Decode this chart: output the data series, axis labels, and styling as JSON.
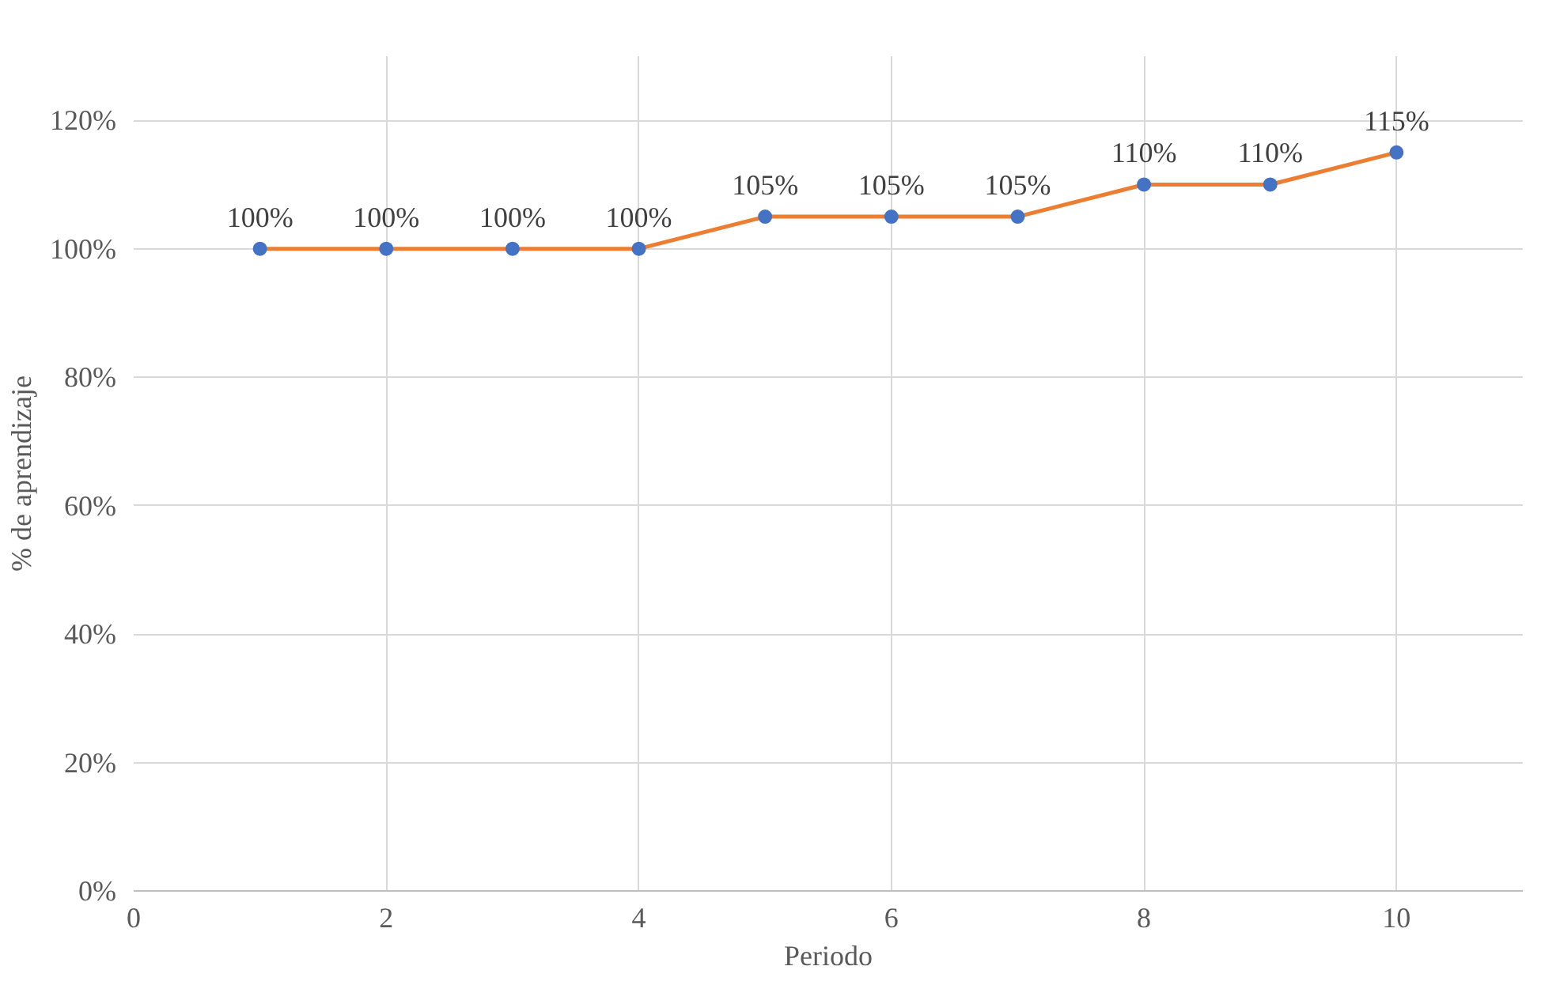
{
  "chart_data": {
    "type": "line",
    "xlabel": "Periodo",
    "ylabel": "% de aprendizaje",
    "x": [
      1,
      2,
      3,
      4,
      5,
      6,
      7,
      8,
      9,
      10
    ],
    "series": [
      {
        "color": "#ed7d31",
        "colors": [
          "#4472c4",
          "#4472c4",
          "#4472c4",
          "#4472c4",
          "#4472c4",
          "#4472c4",
          "#4472c4",
          "#4472c4",
          "#4472c4",
          "#4472c4"
        ],
        "values": [
          100,
          100,
          100,
          100,
          105,
          105,
          105,
          110,
          110,
          115
        ],
        "value_labels": [
          "100%",
          "100%",
          "100%",
          "100%",
          "105%",
          "105%",
          "105%",
          "110%",
          "110%",
          "115%"
        ]
      }
    ],
    "xlim": [
      0,
      11
    ],
    "xticks": [
      0,
      2,
      4,
      6,
      8,
      10
    ],
    "ylim": [
      0,
      130
    ],
    "yticks": [
      {
        "value": 0,
        "label": "0%"
      },
      {
        "value": 20,
        "label": "20%"
      },
      {
        "value": 40,
        "label": "40%"
      },
      {
        "value": 60,
        "label": "60%"
      },
      {
        "value": 80,
        "label": "80%"
      },
      {
        "value": 100,
        "label": "100%"
      },
      {
        "value": 120,
        "label": "120%"
      }
    ],
    "grid": true,
    "marker": "circle",
    "line_style": "solid"
  }
}
